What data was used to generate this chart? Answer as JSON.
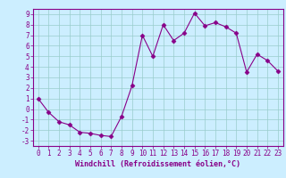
{
  "x": [
    0,
    1,
    2,
    3,
    4,
    5,
    6,
    7,
    8,
    9,
    10,
    11,
    12,
    13,
    14,
    15,
    16,
    17,
    18,
    19,
    20,
    21,
    22,
    23
  ],
  "y": [
    1,
    -0.3,
    -1.2,
    -1.5,
    -2.2,
    -2.3,
    -2.5,
    -2.6,
    -0.7,
    2.2,
    7.0,
    5.0,
    8.0,
    6.5,
    7.2,
    9.1,
    7.9,
    8.2,
    7.8,
    7.2,
    3.5,
    5.2,
    4.6,
    3.6
  ],
  "xlim": [
    -0.5,
    23.5
  ],
  "ylim": [
    -3.5,
    9.5
  ],
  "yticks": [
    -3,
    -2,
    -1,
    0,
    1,
    2,
    3,
    4,
    5,
    6,
    7,
    8,
    9
  ],
  "xticks": [
    0,
    1,
    2,
    3,
    4,
    5,
    6,
    7,
    8,
    9,
    10,
    11,
    12,
    13,
    14,
    15,
    16,
    17,
    18,
    19,
    20,
    21,
    22,
    23
  ],
  "xlabel": "Windchill (Refroidissement éolien,°C)",
  "line_color": "#880088",
  "marker": "D",
  "marker_size": 2.5,
  "bg_color": "#cceeff",
  "grid_color": "#99cccc",
  "label_color": "#880088",
  "tick_color": "#880088",
  "spine_color": "#880088",
  "xlabel_fontsize": 6.0,
  "tick_fontsize": 5.5
}
